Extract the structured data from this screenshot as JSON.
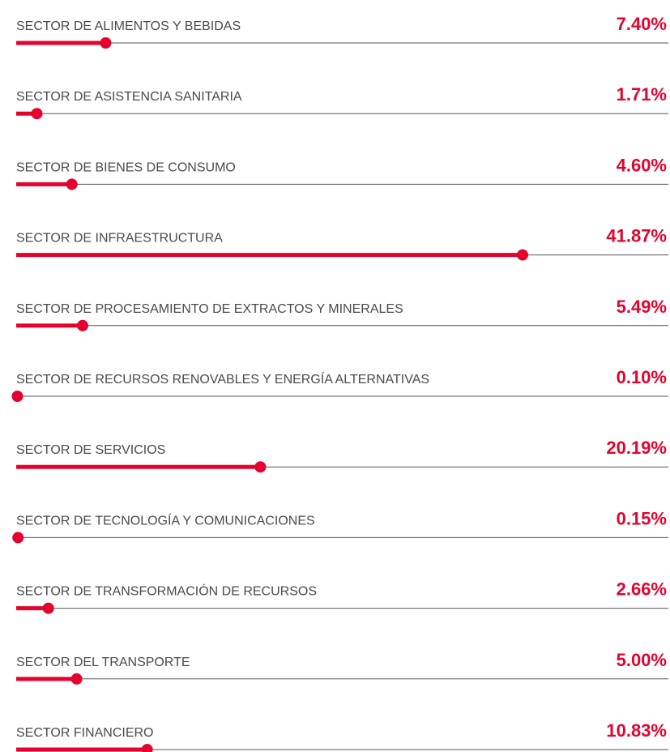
{
  "chart_data": {
    "type": "bar",
    "categories": [
      "SECTOR DE ALIMENTOS Y BEBIDAS",
      "SECTOR DE ASISTENCIA SANITARIA",
      "SECTOR DE BIENES DE CONSUMO",
      "SECTOR DE INFRAESTRUCTURA",
      "SECTOR DE PROCESAMIENTO DE EXTRACTOS Y MINERALES",
      "SECTOR DE RECURSOS RENOVABLES Y ENERGÍA ALTERNATIVAS",
      "SECTOR DE SERVICIOS",
      "SECTOR DE TECNOLOGÍA Y COMUNICACIONES",
      "SECTOR DE TRANSFORMACIÓN DE RECURSOS",
      "SECTOR DEL TRANSPORTE",
      "SECTOR FINANCIERO"
    ],
    "values": [
      7.4,
      1.71,
      4.6,
      41.87,
      5.49,
      0.1,
      20.19,
      0.15,
      2.66,
      5.0,
      10.83
    ],
    "value_labels": [
      "7.40%",
      "1.71%",
      "4.60%",
      "41.87%",
      "5.49%",
      "0.10%",
      "20.19%",
      "0.15%",
      "2.66%",
      "5.00%",
      "10.83%"
    ],
    "color": "#e4032e"
  }
}
